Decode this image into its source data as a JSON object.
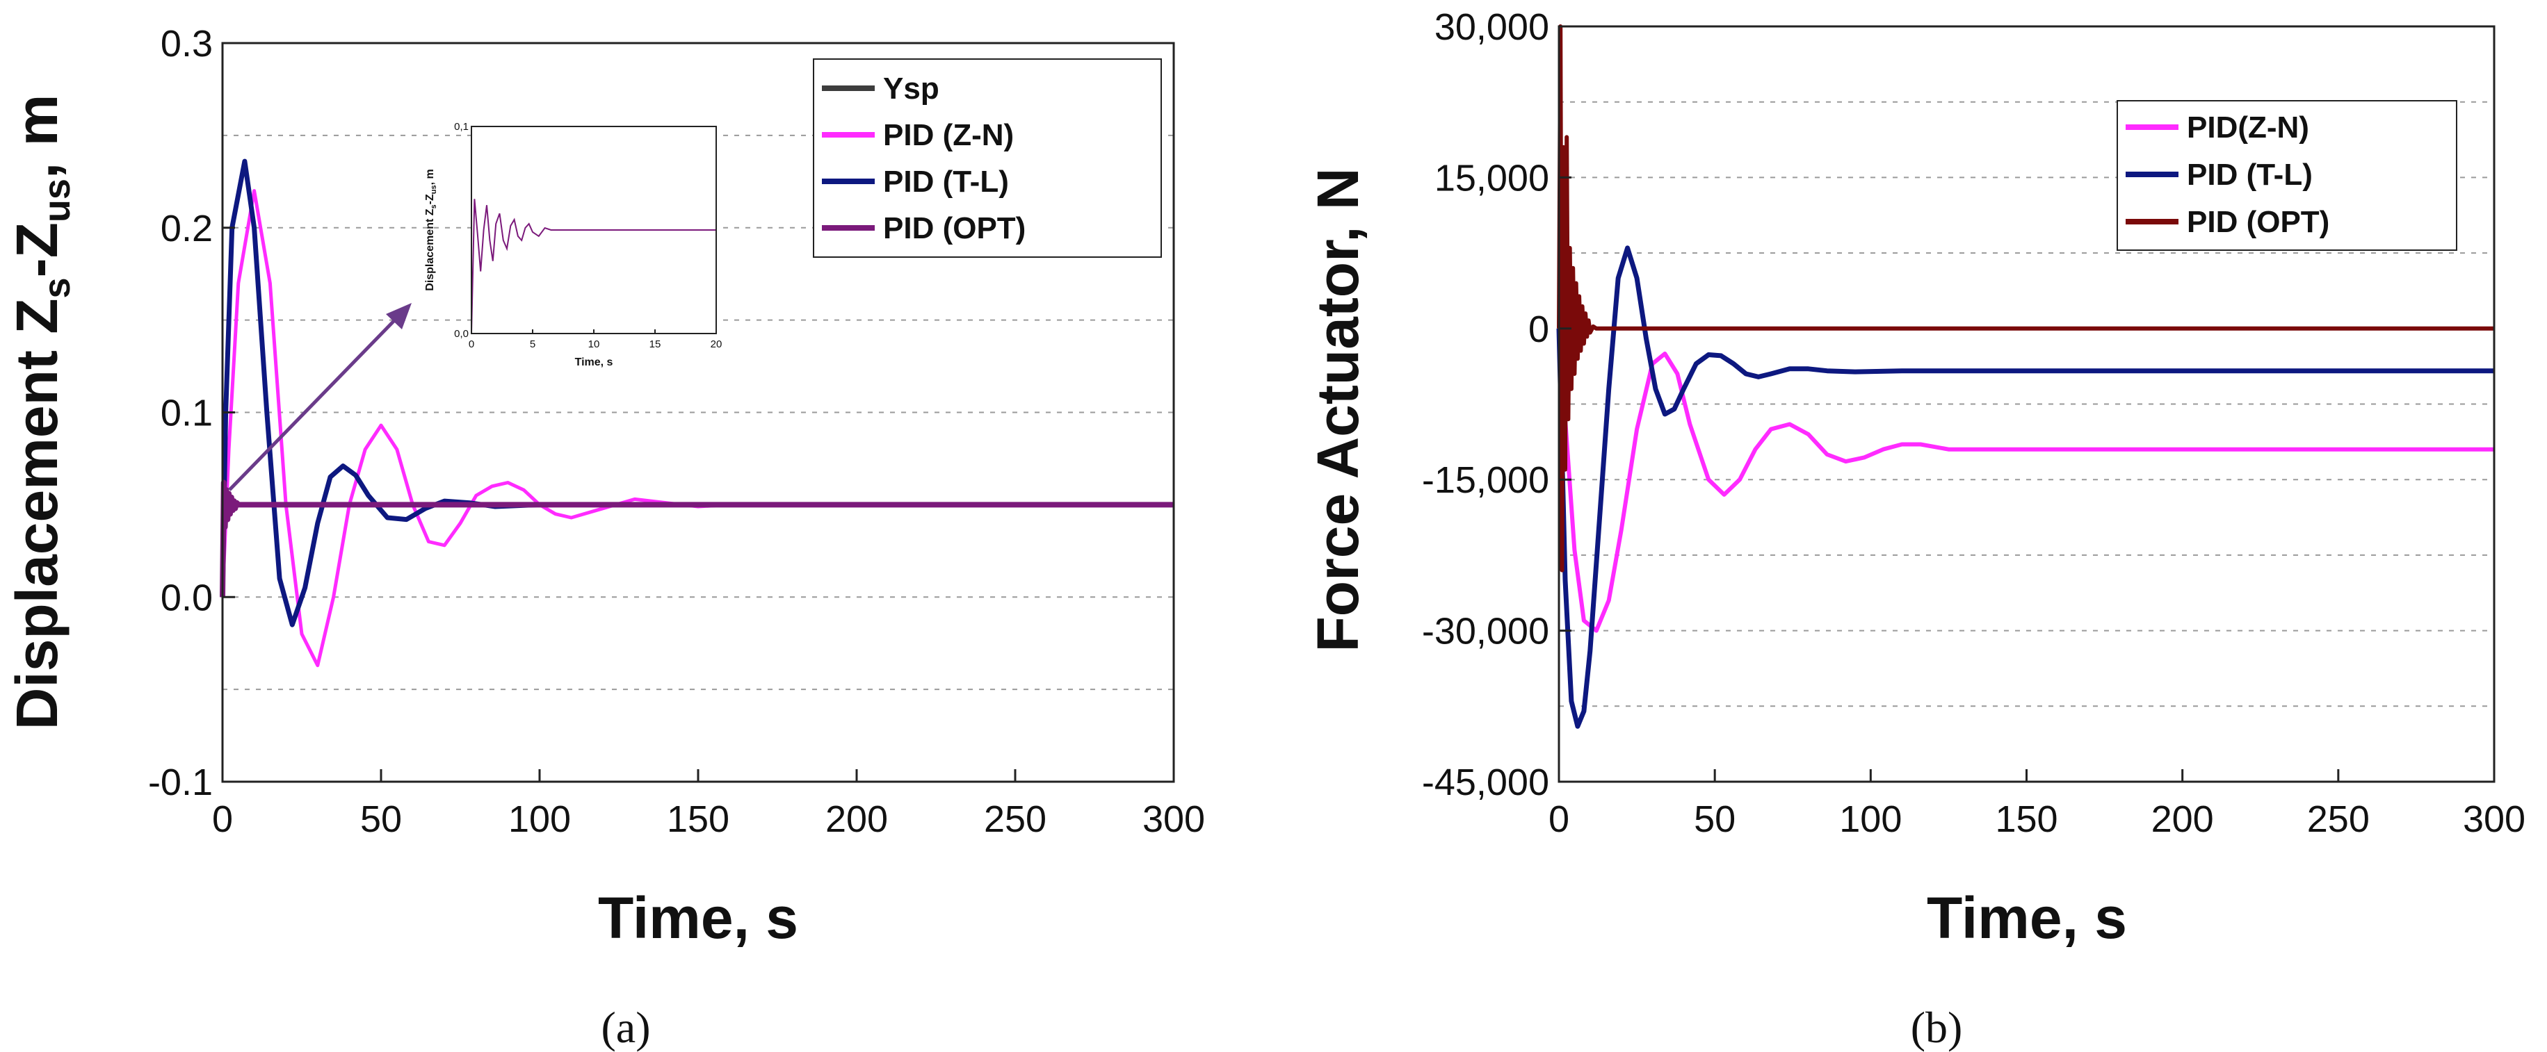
{
  "chart_data": [
    {
      "type": "line",
      "panel_caption": "(a)",
      "xlabel": "Time, s",
      "ylabel_main": "Displacement Z",
      "ylabel_sub1": "s",
      "ylabel_mid": "-Z",
      "ylabel_sub2": "us",
      "ylabel_tail": ", m",
      "xlim": [
        0,
        300
      ],
      "ylim": [
        -0.1,
        0.3
      ],
      "xticks": [
        0,
        50,
        100,
        150,
        200,
        250,
        300
      ],
      "yticks": [
        -0.1,
        0.0,
        0.1,
        0.2,
        0.3
      ],
      "ytick_labels": [
        "-0.1",
        "0.0",
        "0.1",
        "0.2",
        "0.3"
      ],
      "grid": "dashed horizontal",
      "legend_position": "top-right",
      "series": [
        {
          "name": "Ysp",
          "color": "#3d3d3d",
          "x": [
            0,
            300
          ],
          "y": [
            0.05,
            0.05
          ]
        },
        {
          "name": "PID (Z-N)",
          "color": "#ff2bff",
          "x": [
            0,
            2,
            5,
            10,
            15,
            20,
            25,
            30,
            35,
            40,
            45,
            50,
            55,
            60,
            65,
            70,
            75,
            80,
            85,
            90,
            95,
            100,
            105,
            110,
            120,
            130,
            140,
            150,
            160,
            180,
            200,
            300
          ],
          "y": [
            0.0,
            0.08,
            0.17,
            0.22,
            0.17,
            0.05,
            -0.02,
            -0.037,
            0.0,
            0.05,
            0.08,
            0.093,
            0.08,
            0.05,
            0.03,
            0.028,
            0.04,
            0.055,
            0.06,
            0.062,
            0.058,
            0.05,
            0.045,
            0.043,
            0.048,
            0.053,
            0.051,
            0.049,
            0.05,
            0.05,
            0.05,
            0.05
          ]
        },
        {
          "name": "PID (T-L)",
          "color": "#0d1880",
          "x": [
            0,
            1,
            3,
            7,
            10,
            14,
            18,
            22,
            26,
            30,
            34,
            38,
            42,
            46,
            52,
            58,
            64,
            70,
            78,
            86,
            100,
            120,
            300
          ],
          "y": [
            0.0,
            0.1,
            0.2,
            0.236,
            0.2,
            0.1,
            0.01,
            -0.015,
            0.005,
            0.04,
            0.065,
            0.071,
            0.066,
            0.055,
            0.043,
            0.042,
            0.048,
            0.052,
            0.051,
            0.049,
            0.05,
            0.05,
            0.05
          ]
        },
        {
          "name": "PID (OPT)",
          "color": "#7b1a7b",
          "x": [
            0,
            0.4,
            0.8,
            1.2,
            1.6,
            2.0,
            2.4,
            2.8,
            3.2,
            3.6,
            4.0,
            4.5,
            5,
            6,
            300
          ],
          "y": [
            0.0,
            0.062,
            0.038,
            0.058,
            0.042,
            0.056,
            0.045,
            0.054,
            0.047,
            0.052,
            0.048,
            0.051,
            0.05,
            0.05,
            0.05
          ]
        }
      ],
      "inset": {
        "ylabel_main": "Displacement Z",
        "ylabel_sub1": "s",
        "ylabel_mid": "-Z",
        "ylabel_sub2": "us",
        "ylabel_tail": ", m",
        "xlabel": "Time, s",
        "xlim": [
          0,
          20
        ],
        "ylim": [
          0.0,
          0.1
        ],
        "xticks": [
          0,
          5,
          10,
          15,
          20
        ],
        "yticks": [
          0.0,
          0.1
        ],
        "ytick_labels": [
          "0,0",
          "0,1"
        ],
        "color": "#7b1a7b",
        "x": [
          0,
          0.25,
          0.5,
          0.75,
          1.0,
          1.25,
          1.5,
          1.75,
          2.0,
          2.3,
          2.6,
          2.9,
          3.2,
          3.5,
          3.8,
          4.1,
          4.4,
          4.7,
          5.0,
          5.5,
          6.0,
          6.5,
          7.0,
          20
        ],
        "y": [
          0.0,
          0.065,
          0.048,
          0.03,
          0.05,
          0.062,
          0.045,
          0.035,
          0.053,
          0.058,
          0.045,
          0.041,
          0.052,
          0.055,
          0.047,
          0.045,
          0.051,
          0.053,
          0.049,
          0.047,
          0.051,
          0.05,
          0.05,
          0.05
        ]
      }
    },
    {
      "type": "line",
      "panel_caption": "(b)",
      "xlabel": "Time, s",
      "ylabel": "Force Actuator, N",
      "xlim": [
        0,
        300
      ],
      "ylim": [
        -45000,
        30000
      ],
      "xticks": [
        0,
        50,
        100,
        150,
        200,
        250,
        300
      ],
      "yticks": [
        -45000,
        -30000,
        -15000,
        0,
        15000,
        30000
      ],
      "ytick_labels": [
        "-45,000",
        "-30,000",
        "-15,000",
        "0",
        "15,000",
        "30,000"
      ],
      "grid": "dashed horizontal",
      "legend_position": "top-right",
      "series": [
        {
          "name": "PID(Z-N)",
          "color": "#ff2bff",
          "x": [
            0,
            2,
            5,
            8,
            12,
            16,
            20,
            25,
            30,
            34,
            38,
            42,
            48,
            53,
            58,
            63,
            68,
            74,
            80,
            86,
            92,
            98,
            104,
            110,
            116,
            125,
            140,
            160,
            200,
            300
          ],
          "y": [
            0,
            -9000,
            -22000,
            -29000,
            -30000,
            -27000,
            -20000,
            -10000,
            -3500,
            -2500,
            -4500,
            -9500,
            -15000,
            -16500,
            -15000,
            -12000,
            -10000,
            -9500,
            -10500,
            -12500,
            -13200,
            -12800,
            -12000,
            -11500,
            -11500,
            -12000,
            -12000,
            -12000,
            -12000,
            -12000
          ]
        },
        {
          "name": "PID (T-L)",
          "color": "#0d1880",
          "x": [
            0,
            2,
            4,
            6,
            8,
            10,
            13,
            16,
            19,
            22,
            25,
            28,
            31,
            34,
            37,
            40,
            44,
            48,
            52,
            56,
            60,
            64,
            68,
            74,
            80,
            86,
            95,
            110,
            130,
            160,
            300
          ],
          "y": [
            0,
            -25000,
            -37000,
            -39500,
            -38000,
            -32000,
            -19000,
            -6000,
            5000,
            8000,
            5000,
            -1000,
            -6000,
            -8500,
            -8000,
            -6000,
            -3500,
            -2600,
            -2700,
            -3500,
            -4500,
            -4800,
            -4500,
            -4000,
            -4000,
            -4200,
            -4300,
            -4200,
            -4200,
            -4200,
            -4200
          ]
        },
        {
          "name": "PID (OPT)",
          "color": "#7a0a0a",
          "x": [
            0,
            0.5,
            1.0,
            1.5,
            2.0,
            2.5,
            3.0,
            3.5,
            4.0,
            4.5,
            5.0,
            5.5,
            6.0,
            6.5,
            7.0,
            7.5,
            8.0,
            8.5,
            9.0,
            9.5,
            10.0,
            11,
            12,
            300
          ],
          "y": [
            0,
            30000,
            -24000,
            18000,
            -14000,
            19000,
            -9000,
            8000,
            -6000,
            6000,
            -4500,
            4500,
            -3000,
            3200,
            -2200,
            2200,
            -1500,
            1500,
            -800,
            800,
            -400,
            200,
            0,
            0
          ]
        }
      ]
    }
  ]
}
